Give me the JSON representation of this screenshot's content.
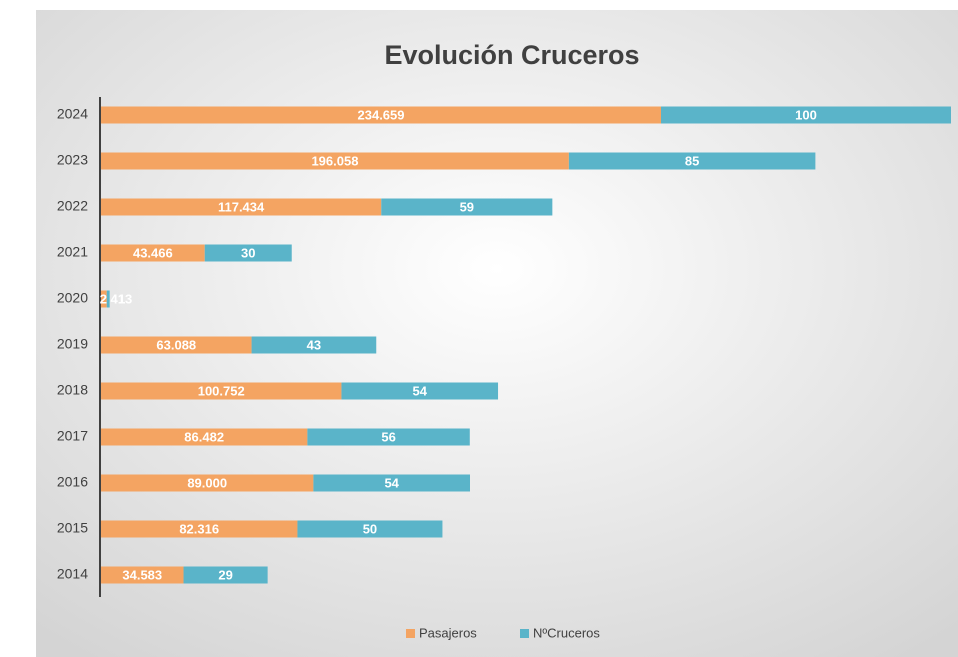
{
  "chart_data": {
    "type": "bar",
    "orientation": "horizontal",
    "stacked": true,
    "title": "Evolución Cruceros",
    "categories": [
      "2024",
      "2023",
      "2022",
      "2021",
      "2020",
      "2019",
      "2018",
      "2017",
      "2016",
      "2015",
      "2014"
    ],
    "series": [
      {
        "name": "Pasajeros",
        "color": "#f4a462",
        "values": [
          234659,
          196058,
          117434,
          43466,
          2413,
          63088,
          100752,
          86482,
          89000,
          82316,
          34583
        ],
        "value_labels": [
          "234.659",
          "196.058",
          "117.434",
          "43.466",
          "2.413",
          "63.088",
          "100.752",
          "86.482",
          "89.000",
          "82.316",
          "34.583"
        ]
      },
      {
        "name": "NºCruceros",
        "color": "#5ab4c9",
        "axis": "x2",
        "values": [
          100,
          85,
          59,
          30,
          1,
          43,
          54,
          56,
          54,
          50,
          29
        ]
      }
    ],
    "legend": "bottom"
  }
}
